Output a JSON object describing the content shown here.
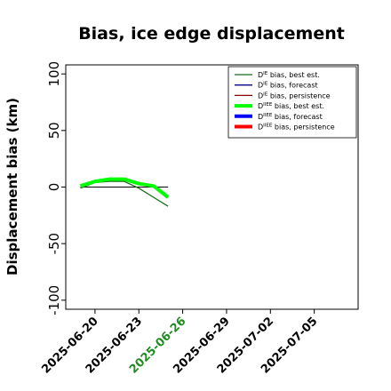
{
  "chart_data": {
    "type": "line",
    "title": "Bias, ice edge displacement",
    "xlabel": "",
    "ylabel": "Displacement bias (km)",
    "xlim": [
      "2025-06-18",
      "2025-07-08"
    ],
    "ylim": [
      -108,
      108
    ],
    "y_ticks": [
      -100,
      -50,
      0,
      50,
      100
    ],
    "y_tick_labels": [
      "-100",
      "-50",
      "0",
      "50",
      "100"
    ],
    "x_ticks": [
      "2025-06-20",
      "2025-06-23",
      "2025-06-26",
      "2025-06-29",
      "2025-07-02",
      "2025-07-05"
    ],
    "highlight_tick": "2025-06-26",
    "highlight_color": "#228b22",
    "grid": false,
    "legend_position": "top-right",
    "series": [
      {
        "name": "bias, best est.",
        "prefix": "D",
        "sup": "IE",
        "color": "#1a6b1a",
        "width": 1.3,
        "x": [
          "2025-06-19",
          "2025-06-20",
          "2025-06-21",
          "2025-06-22",
          "2025-06-23",
          "2025-06-24",
          "2025-06-25"
        ],
        "y": [
          -1,
          4,
          5,
          5,
          -1,
          -9,
          -17
        ]
      },
      {
        "name": "bias, forecast",
        "prefix": "D",
        "sup": "IE",
        "color": "#00008b",
        "width": 1.3,
        "x": [],
        "y": []
      },
      {
        "name": "bias, persistence",
        "prefix": "D",
        "sup": "IE",
        "color": "#8b0000",
        "width": 1.3,
        "x": [],
        "y": []
      },
      {
        "name": "bias, best est.",
        "prefix": "D",
        "sup": "IIEE",
        "color": "#00ff00",
        "width": 4,
        "x": [
          "2025-06-19",
          "2025-06-20",
          "2025-06-21",
          "2025-06-22",
          "2025-06-23",
          "2025-06-24",
          "2025-06-25"
        ],
        "y": [
          1,
          5,
          7,
          7,
          3,
          1,
          -9
        ]
      },
      {
        "name": "bias, forecast",
        "prefix": "D",
        "sup": "IIEE",
        "color": "#0000ff",
        "width": 4,
        "x": [],
        "y": []
      },
      {
        "name": "bias, persistence",
        "prefix": "D",
        "sup": "IIEE",
        "color": "#ff0000",
        "width": 4,
        "x": [],
        "y": []
      }
    ],
    "reference_line": {
      "y": 0,
      "x": [
        "2025-06-19",
        "2025-06-25"
      ],
      "color": "#000000"
    }
  }
}
